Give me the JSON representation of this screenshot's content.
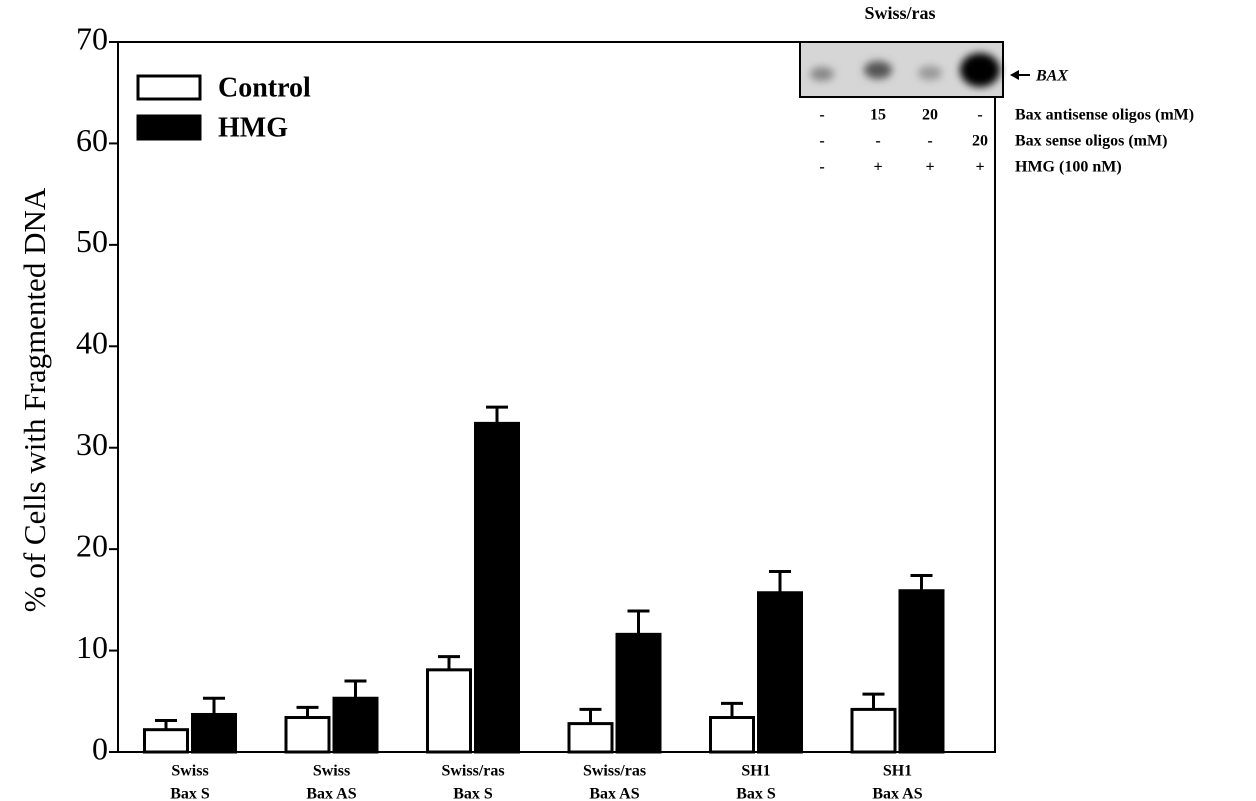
{
  "chart_data": {
    "type": "bar",
    "y_label": "% of Cells with Fragmented DNA",
    "categories": [
      [
        "Swiss",
        "Bax S"
      ],
      [
        "Swiss",
        "Bax AS"
      ],
      [
        "Swiss/ras",
        "Bax S"
      ],
      [
        "Swiss/ras",
        "Bax AS"
      ],
      [
        "SH1",
        "Bax S"
      ],
      [
        "SH1",
        "Bax AS"
      ]
    ],
    "series": [
      {
        "name": "Control",
        "color": "#ffffff",
        "values": [
          2.2,
          3.4,
          8.1,
          2.8,
          3.4,
          4.2
        ],
        "errors": [
          0.9,
          1.0,
          1.3,
          1.4,
          1.4,
          1.5
        ]
      },
      {
        "name": "HMG",
        "color": "#000000",
        "values": [
          3.7,
          5.3,
          32.4,
          11.6,
          15.7,
          15.9
        ],
        "errors": [
          1.6,
          1.7,
          1.6,
          2.3,
          2.1,
          1.5
        ]
      }
    ],
    "ylim": [
      0,
      70
    ],
    "yticks": [
      0,
      10,
      20,
      30,
      40,
      50,
      60,
      70
    ],
    "legend": "upper left"
  },
  "inset": {
    "title": "Swiss/ras",
    "band_label": "BAX",
    "rows": [
      {
        "label": "Bax antisense oligos (mM)",
        "cells": [
          "-",
          "15",
          "20",
          "-"
        ]
      },
      {
        "label": "Bax sense oligos (mM)",
        "cells": [
          "-",
          "-",
          "-",
          "20"
        ]
      },
      {
        "label": "HMG (100 nM)",
        "cells": [
          "-",
          "+",
          "+",
          "+"
        ]
      }
    ]
  }
}
